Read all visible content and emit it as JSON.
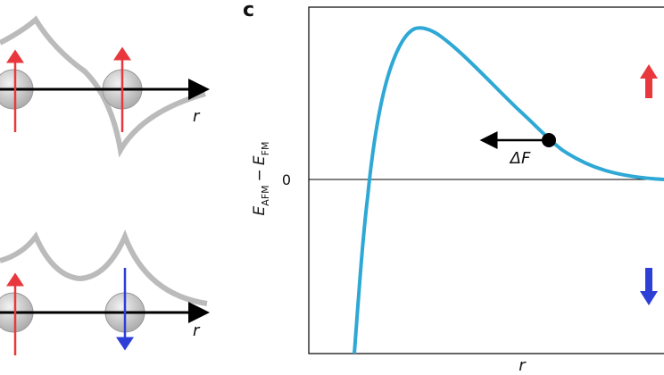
{
  "panels": [
    {
      "axis_label": "r"
    },
    {
      "axis_label": "r"
    }
  ],
  "chart": {
    "panel_label": "c",
    "y_label": {
      "e1": "E",
      "sub1": "AFM",
      "minus": "−",
      "e2": "E",
      "sub2": "FM"
    },
    "y_tick": "0",
    "x_label": "r",
    "arrow_label": "ΔF"
  }
}
